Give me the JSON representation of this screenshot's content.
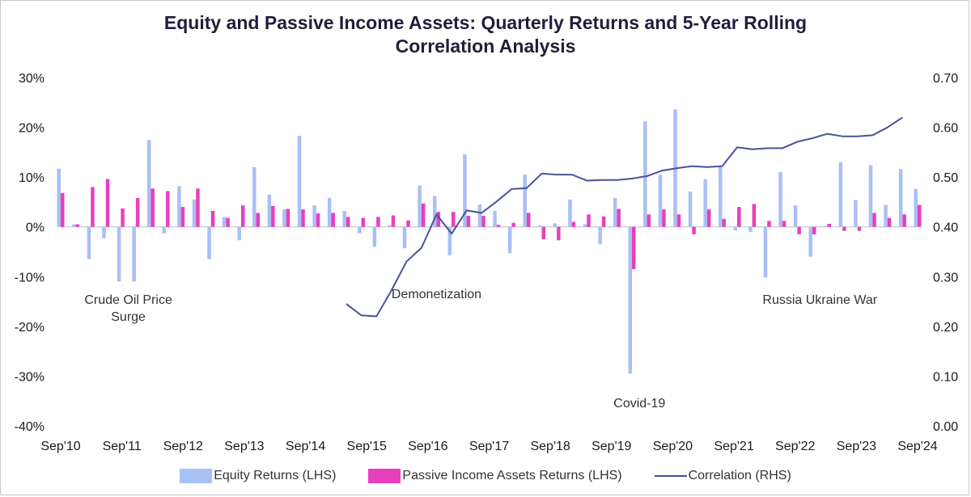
{
  "chart_data": {
    "type": "bar+line",
    "title_lines": [
      "Equity and Passive Income Assets: Quarterly Returns and 5-Year Rolling",
      "Correlation Analysis"
    ],
    "x_tick_labels": [
      "Sep'10",
      "Sep'11",
      "Sep'12",
      "Sep'13",
      "Sep'14",
      "Sep'15",
      "Sep'16",
      "Sep'17",
      "Sep'18",
      "Sep'19",
      "Sep'20",
      "Sep'21",
      "Sep'22",
      "Sep'23",
      "Sep'24"
    ],
    "y_left": {
      "min": -0.4,
      "max": 0.3,
      "step": 0.1,
      "format": "percent",
      "tick_labels": [
        "-40%",
        "-30%",
        "-20%",
        "-10%",
        "0%",
        "10%",
        "20%",
        "30%"
      ]
    },
    "y_right": {
      "min": 0.0,
      "max": 0.7,
      "step": 0.1,
      "tick_labels": [
        "0.00",
        "0.10",
        "0.20",
        "0.30",
        "0.40",
        "0.50",
        "0.60",
        "0.70"
      ]
    },
    "colors": {
      "equity": "#a9c0f5",
      "passive": "#e83fbd",
      "correlation": "#4a519b",
      "zero_line": "#bfbfbf"
    },
    "series": [
      {
        "name": "Equity Returns (LHS)",
        "axis": "left",
        "kind": "bar",
        "values": [
          0.117,
          0.005,
          -0.065,
          -0.023,
          -0.11,
          -0.11,
          0.175,
          -0.013,
          0.082,
          0.055,
          -0.065,
          0.02,
          -0.027,
          0.12,
          0.065,
          0.035,
          0.183,
          0.043,
          0.058,
          0.032,
          -0.013,
          -0.04,
          0.003,
          -0.043,
          0.083,
          0.062,
          -0.057,
          0.146,
          0.045,
          0.032,
          -0.053,
          0.105,
          0.003,
          0.007,
          0.055,
          0.005,
          -0.035,
          0.058,
          -0.295,
          0.212,
          0.105,
          0.236,
          0.071,
          0.096,
          0.121,
          -0.007,
          -0.01,
          -0.102,
          0.11,
          0.043,
          -0.06,
          0.002,
          0.13,
          0.054,
          0.124,
          0.044,
          0.116,
          0.076
        ]
      },
      {
        "name": "Passive Income Assets Returns (LHS)",
        "axis": "left",
        "kind": "bar",
        "values": [
          0.068,
          0.005,
          0.08,
          0.096,
          0.037,
          0.058,
          0.077,
          0.072,
          0.04,
          0.077,
          0.032,
          0.018,
          0.043,
          0.028,
          0.042,
          0.036,
          0.035,
          0.027,
          0.028,
          0.02,
          0.018,
          0.02,
          0.023,
          0.013,
          0.047,
          0.03,
          0.03,
          0.022,
          0.022,
          0.004,
          0.008,
          0.028,
          -0.025,
          -0.027,
          0.01,
          0.025,
          0.021,
          0.036,
          -0.085,
          0.025,
          0.035,
          0.025,
          -0.015,
          0.035,
          0.016,
          0.04,
          0.046,
          0.012,
          0.012,
          -0.015,
          -0.015,
          0.006,
          -0.008,
          -0.008,
          0.028,
          0.018,
          0.025,
          0.044
        ]
      },
      {
        "name": "Correlation (RHS)",
        "axis": "right",
        "kind": "line",
        "start_index": 19,
        "values": [
          0.245,
          0.222,
          0.22,
          0.272,
          0.33,
          0.358,
          0.425,
          0.386,
          0.433,
          0.428,
          0.451,
          0.476,
          0.478,
          0.507,
          0.505,
          0.505,
          0.493,
          0.494,
          0.494,
          0.497,
          0.502,
          0.513,
          0.518,
          0.522,
          0.52,
          0.522,
          0.56,
          0.556,
          0.558,
          0.558,
          0.571,
          0.578,
          0.587,
          0.582,
          0.582,
          0.584,
          0.6,
          0.62
        ]
      }
    ],
    "annotations": [
      {
        "lines": [
          "Crude Oil Price",
          "Surge"
        ],
        "quarter": 4.5,
        "value": -0.155
      },
      {
        "lines": [
          "Demonetization"
        ],
        "quarter": 25.0,
        "value": -0.143
      },
      {
        "lines": [
          "Covid-19"
        ],
        "quarter": 38.5,
        "value": -0.363
      },
      {
        "lines": [
          "Russia Ukraine War"
        ],
        "quarter": 50.5,
        "value": -0.155
      }
    ]
  }
}
